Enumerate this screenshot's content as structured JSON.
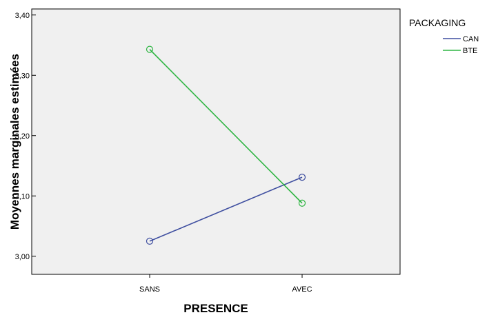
{
  "chart_data": {
    "type": "line",
    "title": "",
    "xlabel": "PRESENCE",
    "ylabel": "Moyennes marginales estimées",
    "categories": [
      "SANS",
      "AVEC"
    ],
    "ylim": [
      2.97,
      3.41
    ],
    "yticks": [
      3.0,
      3.1,
      3.2,
      3.3,
      3.4
    ],
    "ytick_labels": [
      "3,00",
      "3,10",
      "3,20",
      "3,30",
      "3,40"
    ],
    "grid": false,
    "legend": {
      "title": "PACKAGING",
      "position": "top-right, outside plot"
    },
    "series": [
      {
        "name": "CAN",
        "color": "#3f4fa0",
        "marker": "open-circle",
        "values": [
          3.025,
          3.131
        ]
      },
      {
        "name": "BTE",
        "color": "#2fb543",
        "marker": "open-circle",
        "values": [
          3.343,
          3.088
        ]
      }
    ]
  },
  "colors": {
    "plot_background": "#f0f0f0",
    "axis": "#000000"
  }
}
